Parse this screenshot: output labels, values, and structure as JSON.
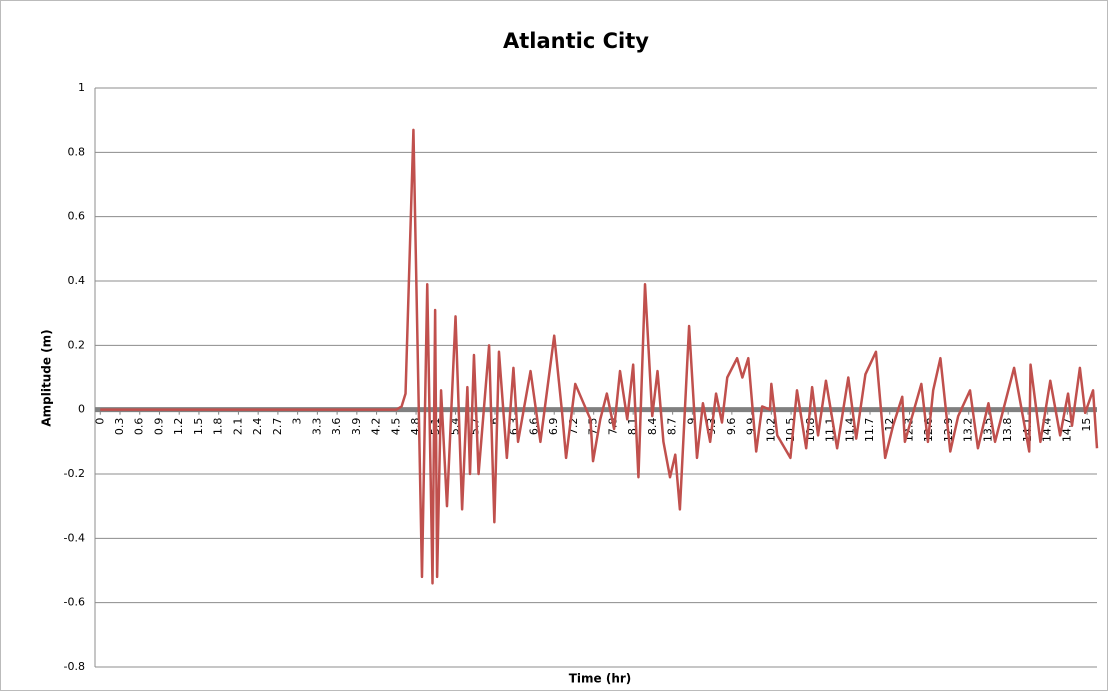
{
  "chart_data": {
    "type": "line",
    "title": "Atlantic City",
    "x_label": "Time (hr)",
    "y_label": "Amplitude (m)",
    "x": [
      0,
      4.5,
      4.58,
      4.64,
      4.76,
      4.89,
      4.97,
      5.05,
      5.09,
      5.12,
      5.18,
      5.27,
      5.4,
      5.5,
      5.58,
      5.62,
      5.68,
      5.75,
      5.91,
      5.99,
      6.06,
      6.18,
      6.28,
      6.35,
      6.54,
      6.69,
      6.9,
      7.02,
      7.08,
      7.22,
      7.45,
      7.49,
      7.6,
      7.7,
      7.81,
      7.9,
      8.01,
      8.1,
      8.18,
      8.28,
      8.39,
      8.47,
      8.56,
      8.66,
      8.74,
      8.81,
      8.95,
      9.07,
      9.16,
      9.27,
      9.36,
      9.45,
      9.53,
      9.68,
      9.76,
      9.85,
      9.97,
      10.06,
      10.18,
      10.2,
      10.29,
      10.49,
      10.59,
      10.73,
      10.82,
      10.91,
      11.03,
      11.2,
      11.37,
      11.49,
      11.63,
      11.79,
      11.93,
      12.05,
      12.19,
      12.23,
      12.48,
      12.58,
      12.66,
      12.77,
      12.92,
      13.04,
      13.22,
      13.34,
      13.5,
      13.6,
      13.89,
      14.12,
      14.14,
      14.29,
      14.44,
      14.59,
      14.71,
      14.77,
      14.89,
      14.97,
      15.09,
      15.15
    ],
    "series": [
      {
        "name": "Amplitude",
        "color": "#c0504d",
        "values": [
          0,
          0,
          0.01,
          0.05,
          0.87,
          -0.52,
          0.39,
          -0.54,
          0.31,
          -0.52,
          0.06,
          -0.3,
          0.29,
          -0.31,
          0.07,
          -0.2,
          0.17,
          -0.2,
          0.2,
          -0.35,
          0.18,
          -0.15,
          0.13,
          -0.1,
          0.12,
          -0.1,
          0.23,
          -0.01,
          -0.15,
          0.08,
          -0.03,
          -0.16,
          -0.03,
          0.05,
          -0.06,
          0.12,
          -0.03,
          0.14,
          -0.21,
          0.39,
          -0.02,
          0.12,
          -0.1,
          -0.21,
          -0.14,
          -0.31,
          0.26,
          -0.15,
          0.02,
          -0.1,
          0.05,
          -0.04,
          0.1,
          0.16,
          0.1,
          0.16,
          -0.13,
          0.01,
          0,
          0.08,
          -0.08,
          -0.15,
          0.06,
          -0.12,
          0.07,
          -0.08,
          0.09,
          -0.12,
          0.1,
          -0.09,
          0.11,
          0.18,
          -0.15,
          -0.05,
          0.04,
          -0.1,
          0.08,
          -0.1,
          0.06,
          0.16,
          -0.13,
          -0.02,
          0.06,
          -0.12,
          0.02,
          -0.1,
          0.13,
          -0.13,
          0.14,
          -0.1,
          0.09,
          -0.08,
          0.05,
          -0.05,
          0.13,
          -0.01,
          0.06,
          -0.12
        ]
      }
    ],
    "xlim": [
      -0.08,
      15.15
    ],
    "xticks": [
      0,
      0.3,
      0.6,
      0.9,
      1.2,
      1.5,
      1.8,
      2.1,
      2.4,
      2.7,
      3,
      3.3,
      3.6,
      3.9,
      4.2,
      4.5,
      4.8,
      5.1,
      5.4,
      5.7,
      6,
      6.3,
      6.6,
      6.9,
      7.2,
      7.5,
      7.8,
      8.1,
      8.4,
      8.7,
      9,
      9.3,
      9.6,
      9.9,
      10.2,
      10.5,
      10.8,
      11.1,
      11.4,
      11.7,
      12,
      12.3,
      12.6,
      12.9,
      13.2,
      13.5,
      13.8,
      14.1,
      14.4,
      14.7,
      15
    ],
    "ylim": [
      -0.8,
      1
    ],
    "yticks": [
      -0.8,
      -0.6,
      -0.4,
      -0.2,
      0,
      0.2,
      0.4,
      0.6,
      0.8,
      1
    ],
    "grid": true
  }
}
